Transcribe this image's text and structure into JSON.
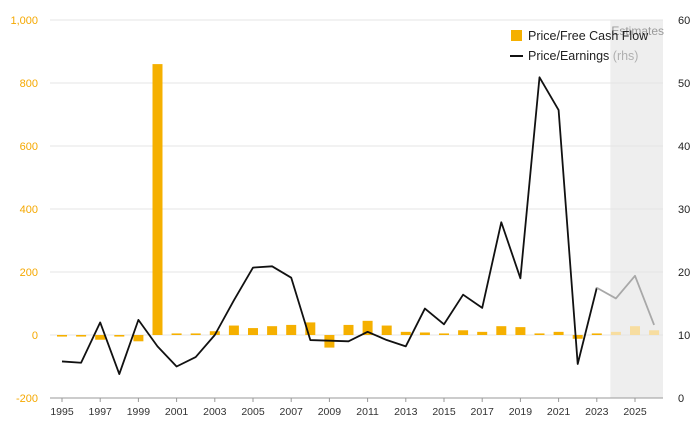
{
  "chart_data": {
    "type": "bar+line",
    "x": [
      1995,
      1996,
      1997,
      1998,
      1999,
      2000,
      2001,
      2002,
      2003,
      2004,
      2005,
      2006,
      2007,
      2008,
      2009,
      2010,
      2011,
      2012,
      2013,
      2014,
      2015,
      2016,
      2017,
      2018,
      2019,
      2020,
      2021,
      2022,
      2023,
      2024,
      2025,
      2026
    ],
    "x_ticks": [
      "1995",
      "1997",
      "1999",
      "2001",
      "2003",
      "2005",
      "2007",
      "2009",
      "2011",
      "2013",
      "2015",
      "2017",
      "2019",
      "2021",
      "2023",
      "2025"
    ],
    "estimates_from": 2024,
    "estimates_label": "Estimates",
    "left_axis": {
      "ylim": [
        -200,
        1000
      ],
      "ticks": [
        "-200",
        "0",
        "200",
        "400",
        "600",
        "800",
        "1,000"
      ],
      "tick_values": [
        -200,
        0,
        200,
        400,
        600,
        800,
        1000
      ]
    },
    "right_axis": {
      "ylim": [
        0,
        60
      ],
      "ticks": [
        "0",
        "10",
        "20",
        "30",
        "40",
        "50",
        "60"
      ],
      "tick_values": [
        0,
        10,
        20,
        30,
        40,
        50,
        60
      ]
    },
    "series": [
      {
        "name": "Price/Free Cash Flow",
        "axis": "left",
        "type": "bar",
        "color": "#f5b000",
        "estimate_color": "#f7dda0",
        "values": [
          -5,
          -5,
          -15,
          -5,
          -20,
          860,
          5,
          5,
          12,
          30,
          22,
          28,
          32,
          40,
          -40,
          32,
          45,
          30,
          10,
          8,
          5,
          15,
          10,
          28,
          25,
          5,
          10,
          -12,
          5,
          10,
          28,
          15
        ]
      },
      {
        "name": "Price/Earnings",
        "name_suffix": "(rhs)",
        "axis": "right",
        "type": "line",
        "color": "#111111",
        "estimate_color": "#a8a8a8",
        "values": [
          5.8,
          5.6,
          12,
          3.8,
          12.4,
          8.2,
          5.0,
          6.5,
          10,
          15.5,
          20.7,
          20.9,
          19.1,
          9.2,
          9.1,
          9,
          10.5,
          9.2,
          8.2,
          14.2,
          11.7,
          16.4,
          14.3,
          27.9,
          19,
          50.9,
          45.7,
          5.4,
          17.5,
          15.8,
          19.4,
          11.6
        ]
      }
    ]
  }
}
